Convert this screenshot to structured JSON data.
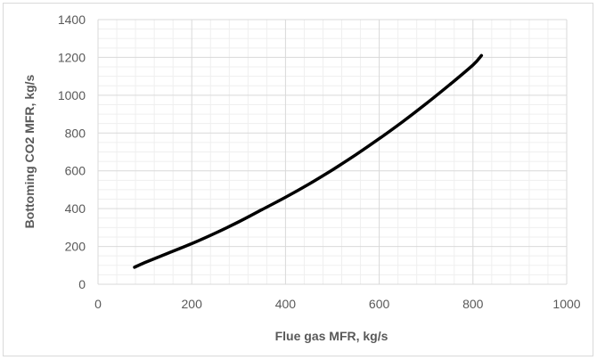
{
  "chart_data": {
    "type": "line",
    "title": "",
    "xlabel": "Flue gas MFR, kg/s",
    "ylabel": "Bottoming CO2 MFR, kg/s",
    "xlim": [
      0,
      1000
    ],
    "ylim": [
      0,
      1400
    ],
    "xticks": [
      0,
      200,
      400,
      600,
      800,
      1000
    ],
    "yticks": [
      0,
      200,
      400,
      600,
      800,
      1000,
      1200,
      1400
    ],
    "grid": true,
    "legend": "none",
    "series": [
      {
        "color": "#000000",
        "x": [
          78,
          100,
          150,
          200,
          250,
          300,
          350,
          400,
          450,
          500,
          550,
          600,
          650,
          700,
          750,
          800,
          818
        ],
        "y": [
          90,
          115,
          165,
          215,
          270,
          330,
          395,
          460,
          530,
          605,
          685,
          770,
          860,
          955,
          1055,
          1160,
          1210
        ]
      }
    ]
  }
}
